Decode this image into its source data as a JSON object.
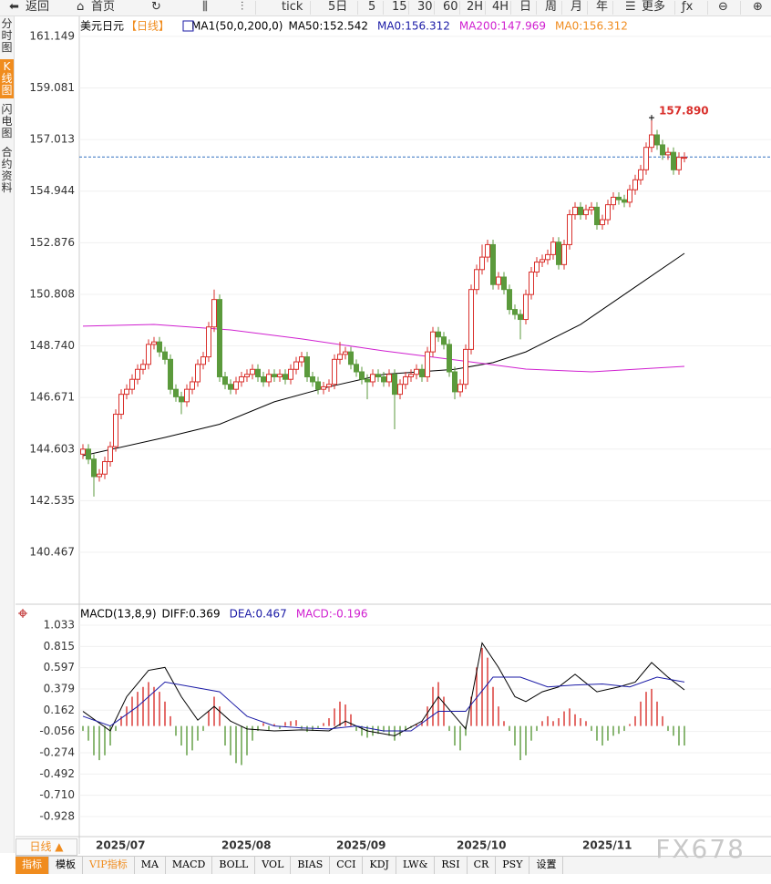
{
  "toolbar": {
    "items": [
      "返回",
      "首页",
      "tick",
      "5日",
      "5",
      "15",
      "30",
      "60",
      "2H",
      "4H",
      "日",
      "周",
      "月",
      "年",
      "更多"
    ]
  },
  "sidebar": [
    "分时图",
    "K线图",
    "闪电图",
    "合约资料"
  ],
  "bottom_tabs": [
    "指标",
    "模板",
    "VIP指标",
    "MA",
    "MACD",
    "BOLL",
    "VOL",
    "BIAS",
    "CCI",
    "KDJ",
    "LW&",
    "RSI",
    "CR",
    "PSY",
    "设置"
  ],
  "period_selector": "日线 ▲",
  "watermark": "FX678",
  "chart_data": [
    {
      "type": "candlestick",
      "title": "美元日元",
      "period": "【日线】",
      "indicator": "MA1(50,0,200,0)",
      "legend": [
        {
          "label": "MA50:",
          "value": 152.542,
          "color": "#000000"
        },
        {
          "label": "MA0:",
          "value": 156.312,
          "color": "#1a1aa6"
        },
        {
          "label": "MA200:",
          "value": 147.969,
          "color": "#d020d0"
        },
        {
          "label": "MA0:",
          "value": 156.312,
          "color": "#f08c1e"
        }
      ],
      "categories": [
        null,
        null,
        "2025/07",
        null,
        null,
        null,
        null,
        null,
        null,
        null,
        null,
        null,
        null,
        null,
        null,
        null,
        null,
        null,
        null,
        null,
        null,
        null,
        null,
        null,
        null,
        "2025/08",
        null,
        null,
        null,
        null,
        null,
        null,
        null,
        null,
        null,
        null,
        null,
        null,
        null,
        null,
        null,
        null,
        null,
        null,
        null,
        null,
        "2025/09",
        null,
        null,
        null,
        null,
        null,
        null,
        null,
        null,
        null,
        null,
        null,
        null,
        null,
        null,
        null,
        null,
        null,
        null,
        null,
        null,
        null,
        "2025/10",
        null,
        null,
        null,
        null,
        null,
        null,
        null,
        null,
        null,
        null,
        null,
        null,
        null,
        null,
        null,
        null,
        null,
        null,
        null,
        null,
        null,
        null,
        "2025/11",
        null,
        null,
        null,
        null,
        null,
        null,
        null,
        null,
        null,
        null,
        null,
        null,
        null,
        null,
        null,
        null,
        null,
        null,
        null
      ],
      "ohlc": [
        [
          144.4,
          144.8,
          144.2,
          144.6
        ],
        [
          144.6,
          144.8,
          144.0,
          144.2
        ],
        [
          144.2,
          144.4,
          142.7,
          143.5
        ],
        [
          143.5,
          143.8,
          143.3,
          143.6
        ],
        [
          143.6,
          144.3,
          143.4,
          144.1
        ],
        [
          144.1,
          144.9,
          143.9,
          144.7
        ],
        [
          144.7,
          146.2,
          144.5,
          146.0
        ],
        [
          146.0,
          147.0,
          145.8,
          146.8
        ],
        [
          146.8,
          147.2,
          146.6,
          147.0
        ],
        [
          147.0,
          147.6,
          146.8,
          147.4
        ],
        [
          147.4,
          148.0,
          147.2,
          147.8
        ],
        [
          147.8,
          148.2,
          147.6,
          148.0
        ],
        [
          148.0,
          149.0,
          147.8,
          148.8
        ],
        [
          148.8,
          149.1,
          148.6,
          148.9
        ],
        [
          148.9,
          149.1,
          148.3,
          148.5
        ],
        [
          148.5,
          148.7,
          148.0,
          148.2
        ],
        [
          148.2,
          148.4,
          146.8,
          147.0
        ],
        [
          147.0,
          147.2,
          146.5,
          146.7
        ],
        [
          146.7,
          146.9,
          146.0,
          146.5
        ],
        [
          146.5,
          147.2,
          146.3,
          147.0
        ],
        [
          147.0,
          147.5,
          146.8,
          147.3
        ],
        [
          147.3,
          148.2,
          147.1,
          148.0
        ],
        [
          148.0,
          148.5,
          147.8,
          148.3
        ],
        [
          148.3,
          149.7,
          148.1,
          149.5
        ],
        [
          149.5,
          151.0,
          149.3,
          150.6
        ],
        [
          150.6,
          150.8,
          147.3,
          147.5
        ],
        [
          147.5,
          147.7,
          147.0,
          147.2
        ],
        [
          147.2,
          147.4,
          146.8,
          147.0
        ],
        [
          147.0,
          147.5,
          146.8,
          147.3
        ],
        [
          147.3,
          147.7,
          147.1,
          147.5
        ],
        [
          147.5,
          147.8,
          147.3,
          147.6
        ],
        [
          147.6,
          148.0,
          147.4,
          147.8
        ],
        [
          147.8,
          148.0,
          147.3,
          147.5
        ],
        [
          147.5,
          147.7,
          147.1,
          147.3
        ],
        [
          147.3,
          147.8,
          147.1,
          147.6
        ],
        [
          147.6,
          147.8,
          147.3,
          147.5
        ],
        [
          147.5,
          147.8,
          147.3,
          147.6
        ],
        [
          147.6,
          147.8,
          147.2,
          147.4
        ],
        [
          147.4,
          148.0,
          147.2,
          147.8
        ],
        [
          147.8,
          148.3,
          147.6,
          148.1
        ],
        [
          148.1,
          148.5,
          147.9,
          148.3
        ],
        [
          148.3,
          148.5,
          147.3,
          147.5
        ],
        [
          147.5,
          147.7,
          147.1,
          147.3
        ],
        [
          147.3,
          147.5,
          146.8,
          147.0
        ],
        [
          147.0,
          147.3,
          146.8,
          147.1
        ],
        [
          147.1,
          147.4,
          146.9,
          147.2
        ],
        [
          147.2,
          148.4,
          147.0,
          148.2
        ],
        [
          148.2,
          148.9,
          148.0,
          148.4
        ],
        [
          148.4,
          148.7,
          148.2,
          148.5
        ],
        [
          148.5,
          148.7,
          147.8,
          148.0
        ],
        [
          148.0,
          148.2,
          147.5,
          147.7
        ],
        [
          147.7,
          147.9,
          147.2,
          147.4
        ],
        [
          147.4,
          147.6,
          146.6,
          147.3
        ],
        [
          147.3,
          147.8,
          147.1,
          147.6
        ],
        [
          147.6,
          147.8,
          147.3,
          147.5
        ],
        [
          147.5,
          147.7,
          147.1,
          147.3
        ],
        [
          147.3,
          147.8,
          147.1,
          147.6
        ],
        [
          147.6,
          147.8,
          145.4,
          146.8
        ],
        [
          146.8,
          147.4,
          146.6,
          147.2
        ],
        [
          147.2,
          147.7,
          147.0,
          147.5
        ],
        [
          147.5,
          147.8,
          147.3,
          147.6
        ],
        [
          147.6,
          148.0,
          147.4,
          147.8
        ],
        [
          147.8,
          148.0,
          147.3,
          147.5
        ],
        [
          147.5,
          148.7,
          147.3,
          148.5
        ],
        [
          148.5,
          149.5,
          148.3,
          149.3
        ],
        [
          149.3,
          149.5,
          148.9,
          149.1
        ],
        [
          149.1,
          149.3,
          148.6,
          148.8
        ],
        [
          148.8,
          149.0,
          147.5,
          147.7
        ],
        [
          147.7,
          147.9,
          146.6,
          146.9
        ],
        [
          146.9,
          147.4,
          146.7,
          147.2
        ],
        [
          147.2,
          148.8,
          147.0,
          148.6
        ],
        [
          148.6,
          151.2,
          148.4,
          151.0
        ],
        [
          151.0,
          152.0,
          150.8,
          151.8
        ],
        [
          151.8,
          152.8,
          151.6,
          152.3
        ],
        [
          152.3,
          153.0,
          152.1,
          152.8
        ],
        [
          152.8,
          153.0,
          151.0,
          151.2
        ],
        [
          151.2,
          151.7,
          151.0,
          151.5
        ],
        [
          151.5,
          151.7,
          150.8,
          151.0
        ],
        [
          151.0,
          151.2,
          150.0,
          150.2
        ],
        [
          150.2,
          150.4,
          149.8,
          150.0
        ],
        [
          150.0,
          150.2,
          149.0,
          149.8
        ],
        [
          149.8,
          151.0,
          149.6,
          150.8
        ],
        [
          150.8,
          151.9,
          150.6,
          151.7
        ],
        [
          151.7,
          152.3,
          151.5,
          152.1
        ],
        [
          152.1,
          152.4,
          151.9,
          152.2
        ],
        [
          152.2,
          152.6,
          152.0,
          152.4
        ],
        [
          152.4,
          153.1,
          152.2,
          152.9
        ],
        [
          152.9,
          153.1,
          151.8,
          152.0
        ],
        [
          152.0,
          153.0,
          151.8,
          152.8
        ],
        [
          152.8,
          154.2,
          152.6,
          154.0
        ],
        [
          154.0,
          154.5,
          153.8,
          154.3
        ],
        [
          154.3,
          154.5,
          153.8,
          154.0
        ],
        [
          154.0,
          154.4,
          153.8,
          154.2
        ],
        [
          154.2,
          154.5,
          154.0,
          154.3
        ],
        [
          154.3,
          154.5,
          153.4,
          153.6
        ],
        [
          153.6,
          154.0,
          153.4,
          153.8
        ],
        [
          153.8,
          154.6,
          153.6,
          154.4
        ],
        [
          154.4,
          154.9,
          154.2,
          154.7
        ],
        [
          154.7,
          154.9,
          154.4,
          154.6
        ],
        [
          154.6,
          154.8,
          154.3,
          154.5
        ],
        [
          154.5,
          155.2,
          154.3,
          155.0
        ],
        [
          155.0,
          155.6,
          154.8,
          155.4
        ],
        [
          155.4,
          156.0,
          155.2,
          155.8
        ],
        [
          155.8,
          156.9,
          155.6,
          156.7
        ],
        [
          156.7,
          157.89,
          156.5,
          157.2
        ],
        [
          157.2,
          157.4,
          156.6,
          156.8
        ],
        [
          156.8,
          157.0,
          156.2,
          156.4
        ],
        [
          156.4,
          156.7,
          156.2,
          156.5
        ],
        [
          156.5,
          156.7,
          155.6,
          155.8
        ],
        [
          155.8,
          156.5,
          155.6,
          156.3
        ],
        [
          156.3,
          156.5,
          156.1,
          156.3
        ]
      ],
      "up_color": "#d9302c",
      "down_color": "#5b9a3c",
      "ylim": [
        138.42,
        161.95
      ],
      "yticks": [
        161.149,
        159.081,
        157.013,
        154.944,
        152.876,
        150.808,
        {
          "value": 148.74,
          "label": "148.740"
        },
        146.671,
        144.603,
        142.535,
        140.467
      ],
      "lines": [
        {
          "color": "#000000",
          "x": [
            0,
            15,
            25,
            35,
            45,
            55,
            68,
            75,
            81,
            91,
            101,
            110
          ],
          "values": [
            144.34,
            145.07,
            145.6,
            146.5,
            147.1,
            147.6,
            147.8,
            148.07,
            148.5,
            149.6,
            151.1,
            152.45
          ]
        },
        {
          "color": "#d020d0",
          "x": [
            0,
            13,
            27,
            40,
            55,
            68,
            81,
            93,
            110
          ],
          "values": [
            149.53,
            149.6,
            149.38,
            149.02,
            148.54,
            148.18,
            147.81,
            147.7,
            147.92
          ]
        }
      ],
      "annotations": [
        {
          "text": "157.890",
          "x": 104,
          "y": 157.89
        }
      ]
    },
    {
      "type": "macd",
      "title": "MACD(13,8,9)",
      "legend": [
        {
          "label": "DIFF:",
          "value": 0.369,
          "color": "#000000"
        },
        {
          "label": "DEA:",
          "value": 0.467,
          "color": "#1a1aa6"
        },
        {
          "label": "MACD:",
          "value": -0.196,
          "color": "#d020d0"
        }
      ],
      "ylim": [
        -1.105,
        1.126
      ],
      "yticks": [
        1.033,
        0.815,
        0.597,
        0.379,
        0.162,
        -0.056,
        -0.274,
        -0.492,
        {
          "value": -0.71,
          "label": "-0.710"
        },
        -0.928
      ],
      "up_color": "#d9302c",
      "down_color": "#5b9a3c",
      "histogram": [
        -0.05,
        -0.15,
        -0.3,
        -0.35,
        -0.3,
        -0.2,
        -0.05,
        0.1,
        0.2,
        0.3,
        0.35,
        0.4,
        0.45,
        0.4,
        0.35,
        0.25,
        0.1,
        -0.1,
        -0.2,
        -0.3,
        -0.25,
        -0.15,
        -0.05,
        0.15,
        0.3,
        0.2,
        -0.2,
        -0.3,
        -0.38,
        -0.4,
        -0.3,
        -0.15,
        -0.05,
        0.03,
        -0.04,
        0.02,
        -0.03,
        0.04,
        0.05,
        0.06,
        -0.03,
        -0.06,
        -0.05,
        -0.02,
        0.03,
        0.08,
        0.18,
        0.25,
        0.22,
        0.12,
        -0.05,
        -0.1,
        -0.12,
        -0.1,
        -0.08,
        -0.06,
        -0.1,
        -0.15,
        -0.1,
        -0.05,
        -0.02,
        0.02,
        0.05,
        0.2,
        0.4,
        0.45,
        0.3,
        -0.05,
        -0.2,
        -0.25,
        -0.1,
        0.3,
        0.6,
        0.8,
        0.7,
        0.4,
        0.2,
        0.05,
        -0.05,
        -0.2,
        -0.35,
        -0.3,
        -0.15,
        -0.05,
        0.05,
        0.1,
        0.05,
        0.08,
        0.15,
        0.18,
        0.12,
        0.08,
        0.05,
        -0.05,
        -0.15,
        -0.2,
        -0.15,
        -0.1,
        -0.08,
        -0.05,
        0.02,
        0.1,
        0.25,
        0.35,
        0.38,
        0.25,
        0.1,
        -0.05,
        -0.1,
        -0.2,
        -0.2
      ],
      "lines": [
        {
          "color": "#000000",
          "x": [
            0,
            5,
            8,
            12,
            15,
            18,
            21,
            24,
            27,
            30,
            35,
            40,
            45,
            48,
            52,
            57,
            62,
            65,
            70,
            73,
            76,
            79,
            81,
            84,
            87,
            90,
            94,
            98,
            101,
            104,
            107,
            110
          ],
          "values": [
            0.15,
            -0.05,
            0.3,
            0.57,
            0.6,
            0.3,
            0.06,
            0.2,
            0.05,
            -0.03,
            -0.05,
            -0.04,
            -0.05,
            0.05,
            -0.05,
            -0.1,
            0.05,
            0.3,
            -0.03,
            0.85,
            0.6,
            0.3,
            0.25,
            0.35,
            0.4,
            0.53,
            0.35,
            0.4,
            0.45,
            0.65,
            0.5,
            0.37
          ]
        },
        {
          "color": "#1a1aa6",
          "x": [
            0,
            5,
            10,
            15,
            20,
            25,
            30,
            35,
            40,
            45,
            50,
            55,
            60,
            65,
            70,
            75,
            80,
            85,
            90,
            95,
            100,
            105,
            110
          ],
          "values": [
            0.1,
            0.0,
            0.2,
            0.45,
            0.4,
            0.35,
            0.1,
            0.0,
            -0.02,
            -0.03,
            0.0,
            -0.05,
            -0.05,
            0.15,
            0.15,
            0.5,
            0.5,
            0.4,
            0.42,
            0.43,
            0.4,
            0.5,
            0.45
          ]
        }
      ]
    }
  ]
}
